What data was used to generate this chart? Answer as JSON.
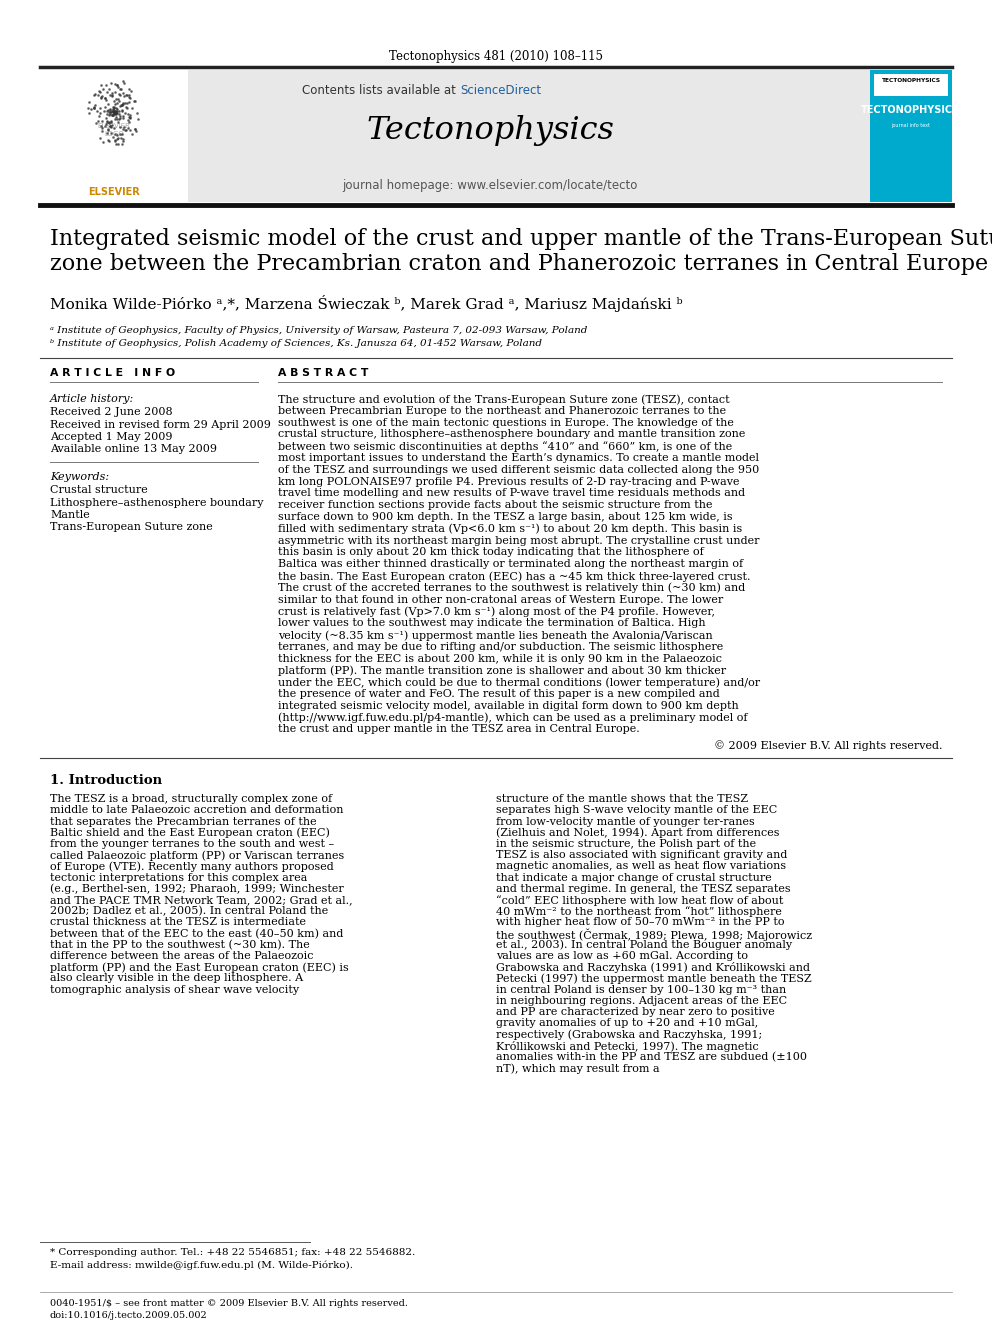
{
  "journal_line": "Tectonophysics 481 (2010) 108–115",
  "contents_line": "Contents lists available at ScienceDirect",
  "sciencedirect_color": "#2060a0",
  "journal_name": "Tectonophysics",
  "journal_homepage": "journal homepage: www.elsevier.com/locate/tecto",
  "header_bg": "#e8e8e8",
  "tecto_bg": "#00aacc",
  "title_line1": "Integrated seismic model of the crust and upper mantle of the Trans-European Suture",
  "title_line2": "zone between the Precambrian craton and Phanerozoic terranes in Central Europe",
  "authors": "Monika Wilde-Piórko ᵃ,*, Marzena Świeczak ᵇ, Marek Grad ᵃ, Mariusz Majdański ᵇ",
  "affil_a": "ᵃ Institute of Geophysics, Faculty of Physics, University of Warsaw, Pasteura 7, 02-093 Warsaw, Poland",
  "affil_b": "ᵇ Institute of Geophysics, Polish Academy of Sciences, Ks. Janusza 64, 01-452 Warsaw, Poland",
  "article_info_header": "A R T I C L E   I N F O",
  "abstract_header": "A B S T R A C T",
  "article_history_label": "Article history:",
  "history_items": [
    "Received 2 June 2008",
    "Received in revised form 29 April 2009",
    "Accepted 1 May 2009",
    "Available online 13 May 2009"
  ],
  "keywords_label": "Keywords:",
  "keywords": [
    "Crustal structure",
    "Lithosphere–asthenosphere boundary",
    "Mantle",
    "Trans-European Suture zone"
  ],
  "abstract_text": "The structure and evolution of the Trans-European Suture zone (TESZ), contact between Precambrian Europe to the northeast and Phanerozoic terranes to the southwest is one of the main tectonic questions in Europe. The knowledge of the crustal structure, lithosphere–asthenosphere boundary and mantle transition zone between two seismic discontinuities at depths “410” and “660” km, is one of the most important issues to understand the Earth’s dynamics. To create a mantle model of the TESZ and surroundings we used different seismic data collected along the 950 km long POLONAISE97 profile P4. Previous results of 2-D ray-tracing and P-wave travel time modelling and new results of P-wave travel time residuals methods and receiver function sections provide facts about the seismic structure from the surface down to 900 km depth. In the TESZ a large basin, about 125 km wide, is filled with sedimentary strata (Vp<6.0 km s⁻¹) to about 20 km depth. This basin is asymmetric with its northeast margin being most abrupt. The crystalline crust under this basin is only about 20 km thick today indicating that the lithosphere of Baltica was either thinned drastically or terminated along the northeast margin of the basin. The East European craton (EEC) has a ~45 km thick three-layered crust. The crust of the accreted terranes to the southwest is relatively thin (~30 km) and similar to that found in other non-cratonal areas of Western Europe. The lower crust is relatively fast (Vp>7.0 km s⁻¹) along most of the P4 profile. However, lower values to the southwest may indicate the termination of Baltica. High velocity (~8.35 km s⁻¹) uppermost mantle lies beneath the Avalonia/Variscan terranes, and may be due to rifting and/or subduction. The seismic lithosphere thickness for the EEC is about 200 km, while it is only 90 km in the Palaeozoic platform (PP). The mantle transition zone is shallower and about 30 km thicker under the EEC, which could be due to thermal conditions (lower temperature) and/or the presence of water and FeO. The result of this paper is a new compiled and integrated seismic velocity model, available in digital form down to 900 km depth (http://www.igf.fuw.edu.pl/p4-mantle), which can be used as a preliminary model of the crust and upper mantle in the TESZ area in Central Europe.",
  "copyright": "© 2009 Elsevier B.V. All rights reserved.",
  "intro_header": "1. Introduction",
  "intro_col1": "The TESZ is a broad, structurally complex zone of middle to late Palaeozoic accretion and deformation that separates the Precambrian terranes of the Baltic shield and the East European craton (EEC) from the younger terranes to the south and west – called Palaeozoic platform (PP) or Variscan terranes of Europe (VTE). Recently many authors proposed tectonic interpretations for this complex area (e.g., Berthel-sen, 1992; Pharaoh, 1999; Winchester and The PACE TMR Network Team, 2002; Grad et al., 2002b; Dadlez et al., 2005). In central Poland the crustal thickness at the TESZ is intermediate between that of the EEC to the east (40–50 km) and that in the PP to the southwest (~30 km). The difference between the areas of the Palaeozoic platform (PP) and the East European craton (EEC) is also clearly visible in the deep lithosphere. A tomographic analysis of shear wave velocity",
  "intro_col2": "structure of the mantle shows that the TESZ separates high S-wave velocity mantle of the EEC from low-velocity mantle of younger ter-ranes (Zielhuis and Nolet, 1994). Apart from differences in the seismic structure, the Polish part of the TESZ is also associated with significant gravity and magnetic anomalies, as well as heat flow variations that indicate a major change of crustal structure and thermal regime. In general, the TESZ separates “cold” EEC lithosphere with low heat flow of about 40 mWm⁻² to the northeast from “hot” lithosphere with higher heat flow of 50–70 mWm⁻² in the PP to the southwest (Čermak, 1989; Plewa, 1998; Majorowicz et al., 2003). In central Poland the Bouguer anomaly values are as low as ∔60 mGal. According to Grabowska and Raczyhska (1991) and Króllikowski and Petecki (1997) the uppermost mantle beneath the TESZ in central Poland is denser by 100–130 kg m⁻³ than in neighbouring regions. Adjacent areas of the EEC and PP are characterized by near zero to positive gravity anomalies of up to +20 and +10 mGal, respectively (Grabowska and Raczyhska, 1991; Króllikowski and Petecki, 1997). The magnetic anomalies with-in the PP and TESZ are subdued (±100 nT), which may result from a",
  "footnote_star": "* Corresponding author. Tel.: +48 22 5546851; fax: +48 22 5546882.",
  "footnote_email": "E-mail address: mwilde@igf.fuw.edu.pl (M. Wilde-Piórko).",
  "footer_left": "0040-1951/$ – see front matter © 2009 Elsevier B.V. All rights reserved.",
  "footer_doi": "doi:10.1016/j.tecto.2009.05.002",
  "background_color": "#ffffff",
  "text_color": "#000000",
  "link_color": "#2060a0"
}
